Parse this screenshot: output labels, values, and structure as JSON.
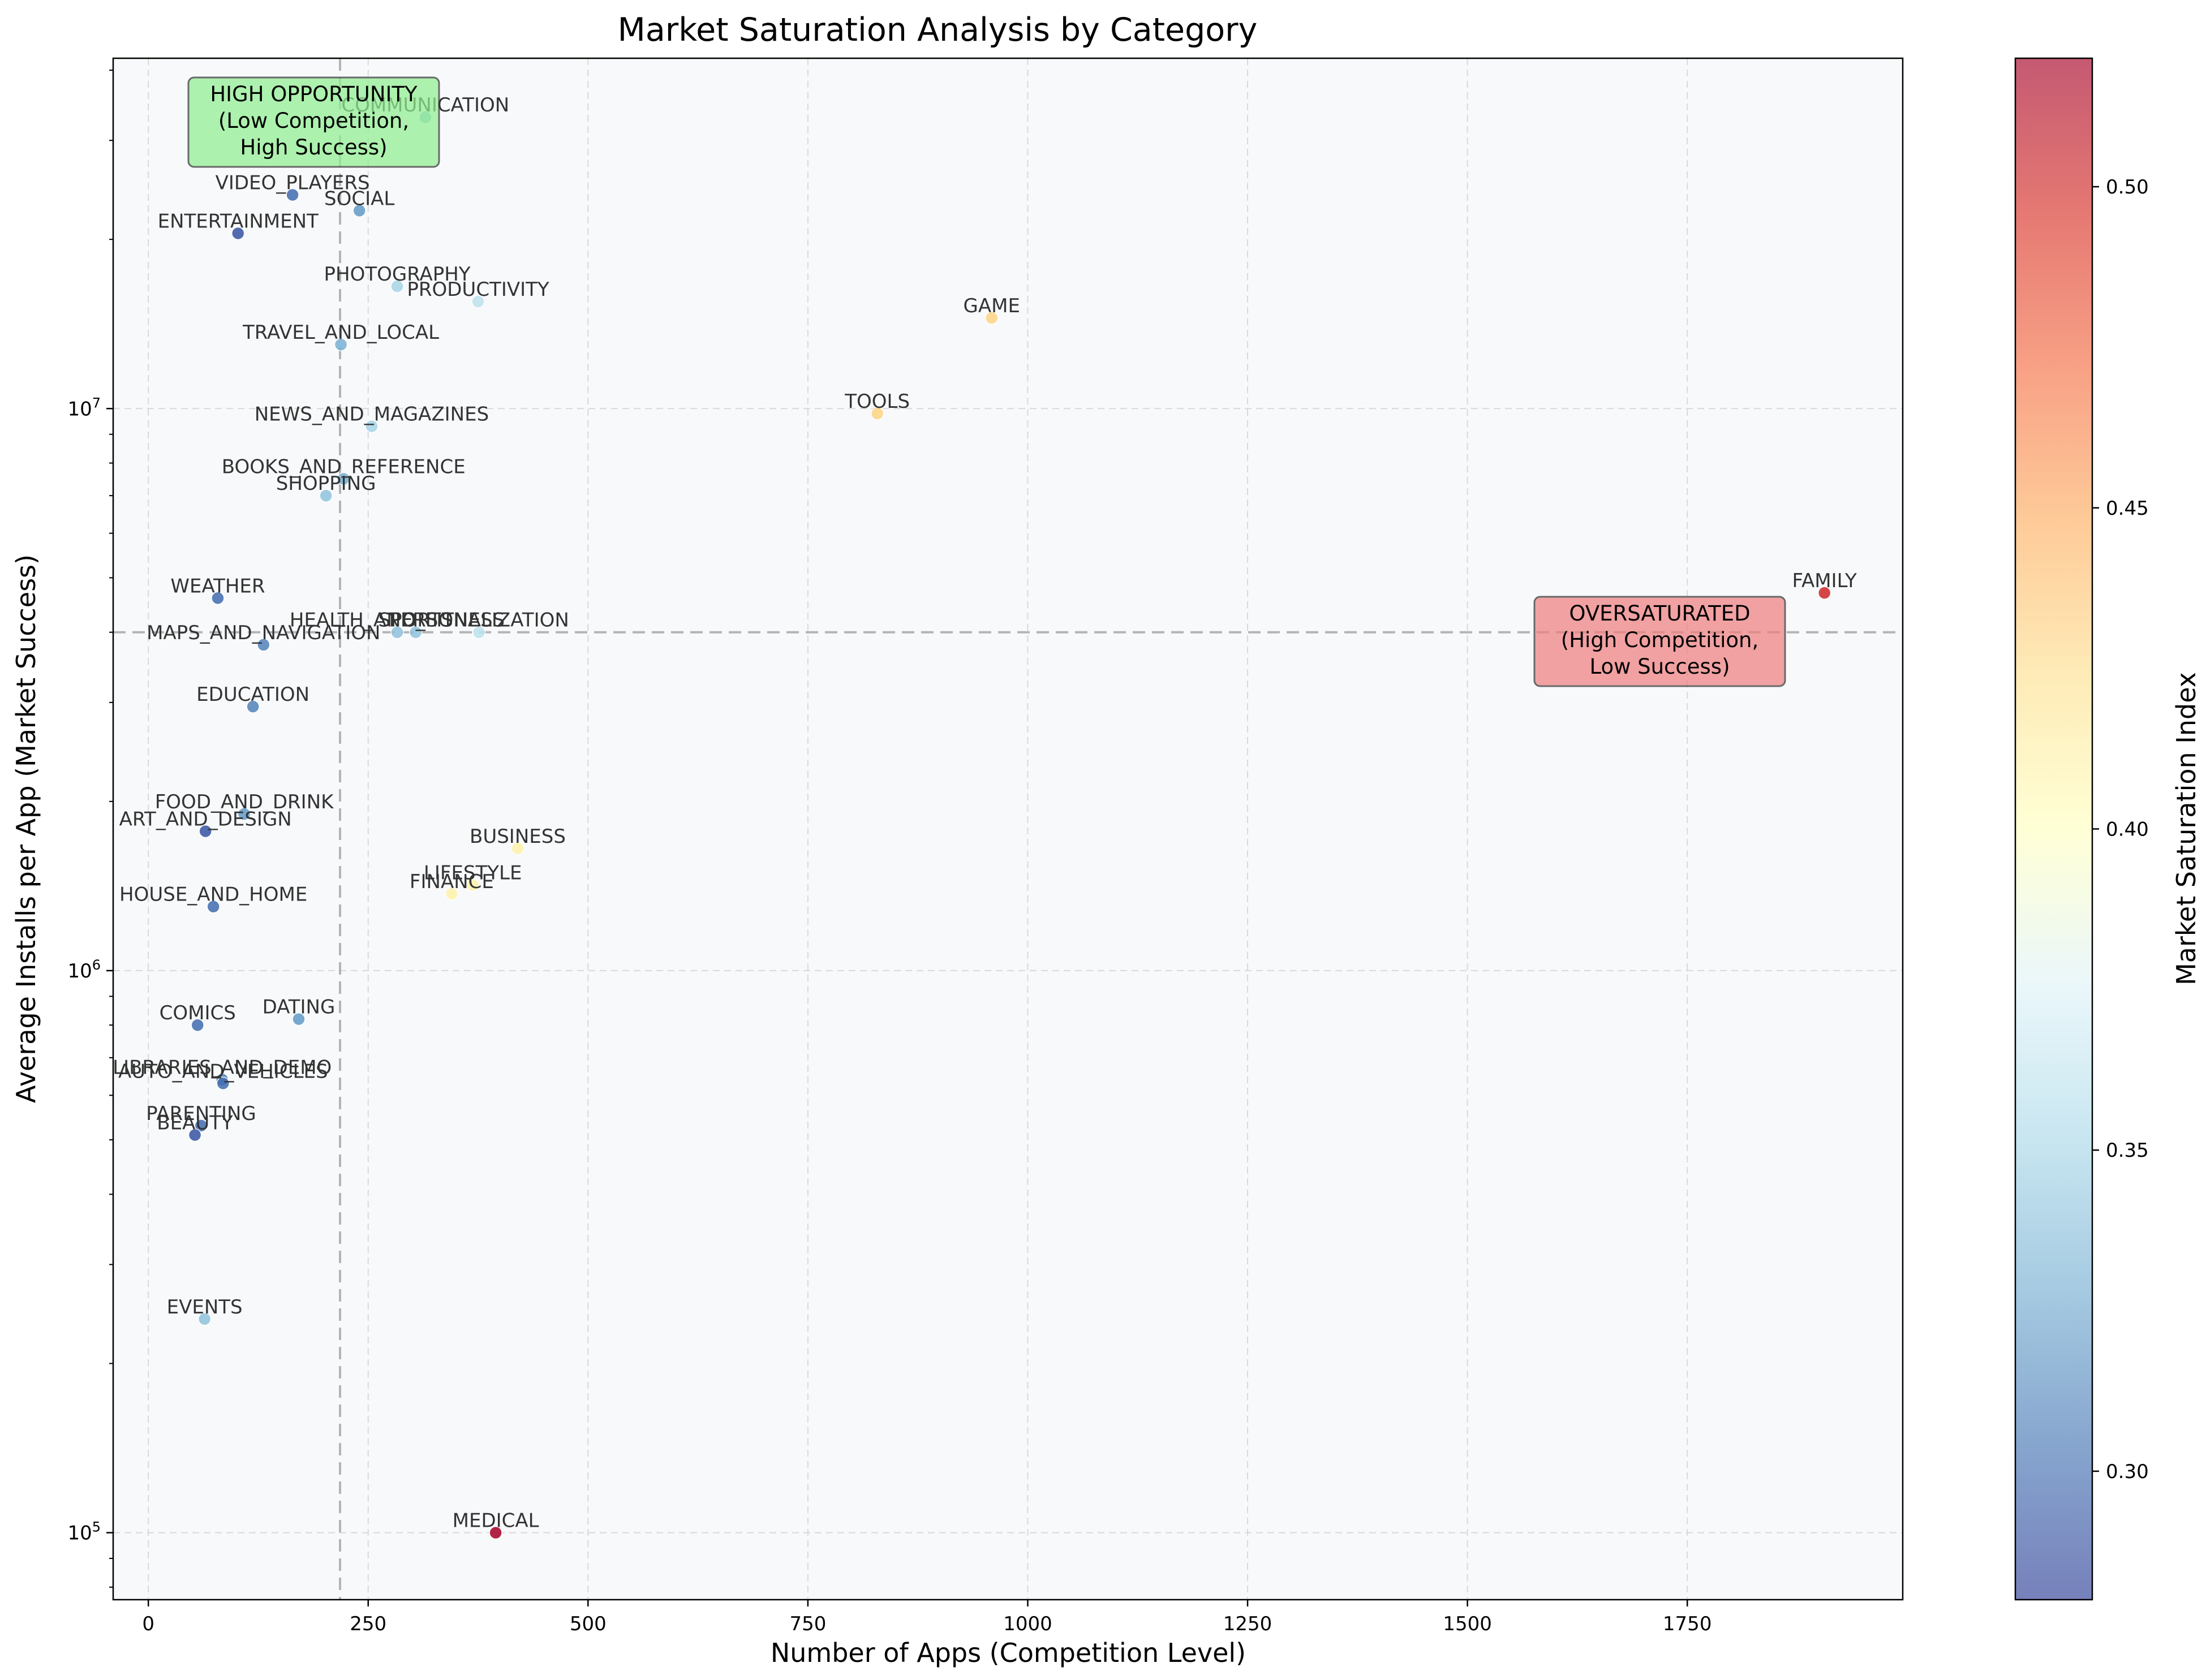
{
  "chart_data": {
    "type": "scatter",
    "title": "Market Saturation Analysis by Category",
    "xlabel": "Number of Apps (Competition Level)",
    "ylabel": "Average Installs per App (Market Success)",
    "xlim": [
      -40,
      1995
    ],
    "ylim": [
      76000,
      42000000
    ],
    "x_scale": "linear",
    "y_scale": "log",
    "x_ticks": [
      0,
      250,
      500,
      750,
      1000,
      1250,
      1500,
      1750
    ],
    "x_tick_labels": [
      "0",
      "250",
      "500",
      "750",
      "1000",
      "1250",
      "1500",
      "1750"
    ],
    "y_ticks": [
      100000,
      1000000,
      10000000
    ],
    "y_tick_labels": [
      "10^5",
      "10^6",
      "10^7"
    ],
    "grid": true,
    "reference_lines": {
      "x": 218,
      "y": 4000000
    },
    "colorbar": {
      "label": "Market Saturation Index",
      "min": 0.28,
      "max": 0.52,
      "ticks": [
        0.3,
        0.35,
        0.4,
        0.45,
        0.5
      ],
      "tick_labels": [
        "0.30",
        "0.35",
        "0.40",
        "0.45",
        "0.50"
      ],
      "colormap": [
        "#2c3c96",
        "#4575b4",
        "#74add1",
        "#abd9e9",
        "#e0f3f8",
        "#ffffbf",
        "#fee090",
        "#fdae61",
        "#f46d43",
        "#d73027",
        "#a50026"
      ]
    },
    "annotations": [
      {
        "text": [
          "HIGH OPPORTUNITY",
          "(Low Competition,",
          "High Success)"
        ],
        "color": "#90ee90",
        "position": "top-left"
      },
      {
        "text": [
          "OVERSATURATED",
          "(High Competition,",
          "Low Success)"
        ],
        "color": "#f08080",
        "position": "right"
      }
    ],
    "points": [
      {
        "label": "COMMUNICATION",
        "x": 315,
        "y": 33000000,
        "s": 0.34
      },
      {
        "label": "VIDEO_PLAYERS",
        "x": 164,
        "y": 24000000,
        "s": 0.3
      },
      {
        "label": "SOCIAL",
        "x": 240,
        "y": 22500000,
        "s": 0.32
      },
      {
        "label": "ENTERTAINMENT",
        "x": 102,
        "y": 20500000,
        "s": 0.29
      },
      {
        "label": "PHOTOGRAPHY",
        "x": 283,
        "y": 16500000,
        "s": 0.35
      },
      {
        "label": "PRODUCTIVITY",
        "x": 375,
        "y": 15500000,
        "s": 0.36
      },
      {
        "label": "GAME",
        "x": 959,
        "y": 14500000,
        "s": 0.43
      },
      {
        "label": "TRAVEL_AND_LOCAL",
        "x": 219,
        "y": 13000000,
        "s": 0.33
      },
      {
        "label": "TOOLS",
        "x": 829,
        "y": 9800000,
        "s": 0.43
      },
      {
        "label": "NEWS_AND_MAGAZINES",
        "x": 254,
        "y": 9300000,
        "s": 0.35
      },
      {
        "label": "BOOKS_AND_REFERENCE",
        "x": 222,
        "y": 7500000,
        "s": 0.33
      },
      {
        "label": "SHOPPING",
        "x": 202,
        "y": 7000000,
        "s": 0.34
      },
      {
        "label": "FAMILY",
        "x": 1906,
        "y": 4700000,
        "s": 0.5
      },
      {
        "label": "WEATHER",
        "x": 79,
        "y": 4600000,
        "s": 0.3
      },
      {
        "label": "PERSONALIZATION",
        "x": 376,
        "y": 4000000,
        "s": 0.36
      },
      {
        "label": "SPORTS",
        "x": 304,
        "y": 4000000,
        "s": 0.34
      },
      {
        "label": "HEALTH_AND_FITNESS",
        "x": 283,
        "y": 4000000,
        "s": 0.34
      },
      {
        "label": "MAPS_AND_NAVIGATION",
        "x": 131,
        "y": 3800000,
        "s": 0.31
      },
      {
        "label": "EDUCATION",
        "x": 119,
        "y": 2950000,
        "s": 0.31
      },
      {
        "label": "FOOD_AND_DRINK",
        "x": 109,
        "y": 1900000,
        "s": 0.32
      },
      {
        "label": "ART_AND_DESIGN",
        "x": 65,
        "y": 1770000,
        "s": 0.29
      },
      {
        "label": "BUSINESS",
        "x": 420,
        "y": 1650000,
        "s": 0.41
      },
      {
        "label": "LIFESTYLE",
        "x": 369,
        "y": 1420000,
        "s": 0.41
      },
      {
        "label": "FINANCE",
        "x": 345,
        "y": 1370000,
        "s": 0.41
      },
      {
        "label": "HOUSE_AND_HOME",
        "x": 74,
        "y": 1300000,
        "s": 0.3
      },
      {
        "label": "DATING",
        "x": 171,
        "y": 820000,
        "s": 0.32
      },
      {
        "label": "COMICS",
        "x": 56,
        "y": 800000,
        "s": 0.3
      },
      {
        "label": "LIBRARIES_AND_DEMO",
        "x": 84,
        "y": 640000,
        "s": 0.31
      },
      {
        "label": "AUTO_AND_VEHICLES",
        "x": 85,
        "y": 630000,
        "s": 0.3
      },
      {
        "label": "PARENTING",
        "x": 60,
        "y": 530000,
        "s": 0.3
      },
      {
        "label": "BEAUTY",
        "x": 53,
        "y": 510000,
        "s": 0.29
      },
      {
        "label": "EVENTS",
        "x": 64,
        "y": 240000,
        "s": 0.34
      },
      {
        "label": "MEDICAL",
        "x": 395,
        "y": 100000,
        "s": 0.52
      }
    ]
  }
}
